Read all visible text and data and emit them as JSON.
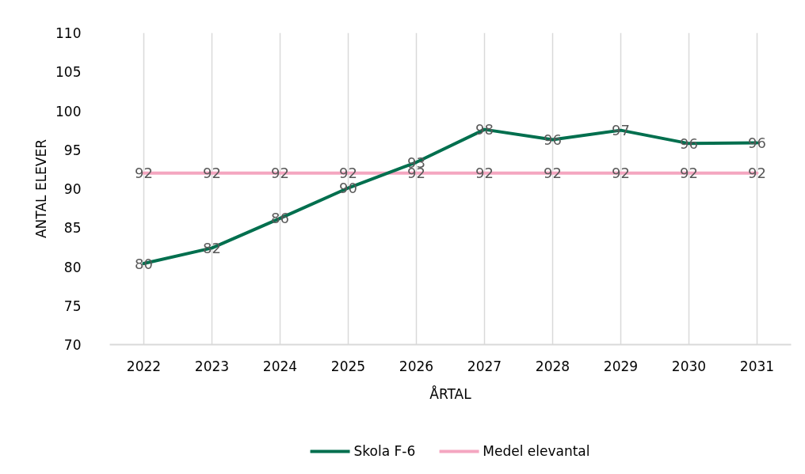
{
  "chart_data": {
    "type": "line",
    "xlabel": "ÅRTAL",
    "ylabel": "ANTAL ELEVER",
    "categories": [
      "2022",
      "2023",
      "2024",
      "2025",
      "2026",
      "2027",
      "2028",
      "2029",
      "2030",
      "2031"
    ],
    "series": [
      {
        "name": "Skola F-6",
        "color": "#006f4e",
        "values": [
          80.4,
          82.4,
          86.2,
          90.1,
          93.4,
          97.6,
          96.3,
          97.5,
          95.8,
          95.9
        ],
        "value_labels": [
          "80",
          "82",
          "86",
          "90",
          "93",
          "98",
          "96",
          "97",
          "96",
          "96"
        ]
      },
      {
        "name": "Medel elevantal",
        "color": "#f4a6c0",
        "values": [
          92,
          92,
          92,
          92,
          92,
          92,
          92,
          92,
          92,
          92
        ],
        "value_labels": [
          "92",
          "92",
          "92",
          "92",
          "92",
          "92",
          "92",
          "92",
          "92",
          "92"
        ]
      }
    ],
    "ylim": [
      70,
      110
    ],
    "yticks": [
      70,
      75,
      80,
      85,
      90,
      95,
      100,
      105,
      110
    ],
    "grid": "x",
    "legend": "bottom"
  }
}
